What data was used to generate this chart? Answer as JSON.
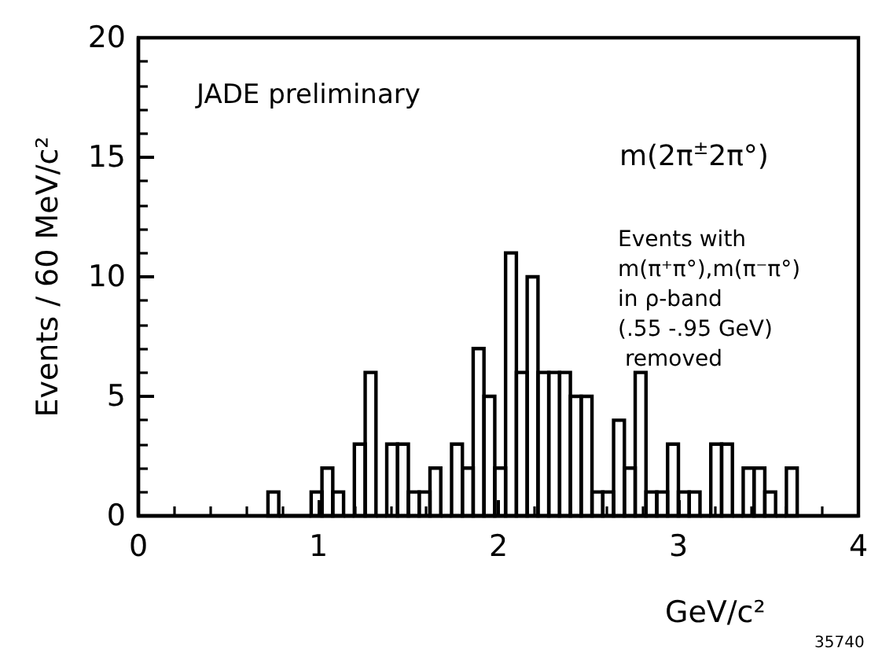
{
  "chart_data": {
    "type": "histogram",
    "xlabel": "GeV/c²",
    "ylabel": "Events / 60 MeV/c²",
    "bins": [
      0.72,
      0.78,
      0.84,
      0.9,
      0.96,
      1.02,
      1.08,
      1.14,
      1.2,
      1.26,
      1.32,
      1.38,
      1.44,
      1.5,
      1.56,
      1.62,
      1.68,
      1.74,
      1.8,
      1.86,
      1.92,
      1.98,
      2.04,
      2.1,
      2.16,
      2.22,
      2.28,
      2.34,
      2.4,
      2.46,
      2.52,
      2.58,
      2.64,
      2.7,
      2.76,
      2.82,
      2.88,
      2.94,
      3.0,
      3.06,
      3.12,
      3.18,
      3.24,
      3.3,
      3.36,
      3.42,
      3.48,
      3.54,
      3.6,
      3.66
    ],
    "values": [
      1,
      0,
      0,
      0,
      1,
      2,
      1,
      0,
      3,
      6,
      0,
      3,
      3,
      1,
      1,
      2,
      0,
      3,
      2,
      7,
      5,
      2,
      11,
      6,
      10,
      6,
      6,
      6,
      5,
      5,
      1,
      1,
      4,
      2,
      6,
      1,
      1,
      3,
      1,
      1,
      0,
      3,
      3,
      0,
      2,
      2,
      1,
      0,
      2
    ],
    "color": "#000000",
    "xlim": [
      0,
      4
    ],
    "xticks": [
      0,
      1,
      2,
      3,
      4
    ],
    "ylim": [
      0,
      20
    ],
    "yticks": [
      0,
      5,
      10,
      15,
      20
    ],
    "grid": false,
    "annotations": [
      "JADE preliminary",
      "m(2π$^{±}$2π°)",
      "Events with\nm(π⁺π°),m(π⁻π°)\nin ρ-band\n(.55 -.95 GeV)\n removed",
      "35740"
    ]
  }
}
